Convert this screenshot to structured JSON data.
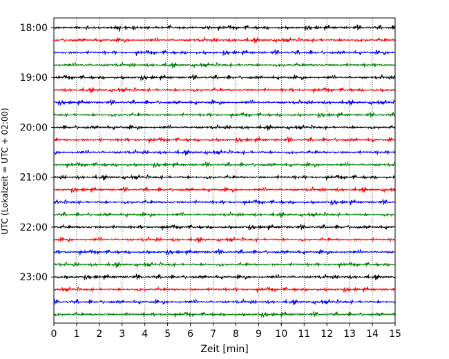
{
  "chart_data": {
    "type": "line",
    "title": "",
    "xlabel": "Zeit  [min]",
    "ylabel": "UTC (Lokalzeit = UTC + 02:00)",
    "xlim": [
      0,
      15
    ],
    "x_ticks": [
      "0",
      "1",
      "2",
      "3",
      "4",
      "5",
      "6",
      "7",
      "8",
      "9",
      "10",
      "11",
      "12",
      "13",
      "14",
      "15"
    ],
    "y_ticks": [
      "18:00",
      "19:00",
      "20:00",
      "21:00",
      "22:00",
      "23:00"
    ],
    "grid": "vertical dotted at each minute",
    "legend": "none",
    "trace_interval_minutes": 15,
    "trace_colors": [
      "#000000",
      "#ff0000",
      "#0000ff",
      "#008000"
    ],
    "traces": [
      "18:00",
      "18:15",
      "18:30",
      "18:45",
      "19:00",
      "19:15",
      "19:30",
      "19:45",
      "20:00",
      "20:15",
      "20:30",
      "20:45",
      "21:00",
      "21:15",
      "21:30",
      "21:45",
      "22:00",
      "22:15",
      "22:30",
      "22:45",
      "23:00",
      "23:15",
      "23:30",
      "23:45"
    ]
  }
}
